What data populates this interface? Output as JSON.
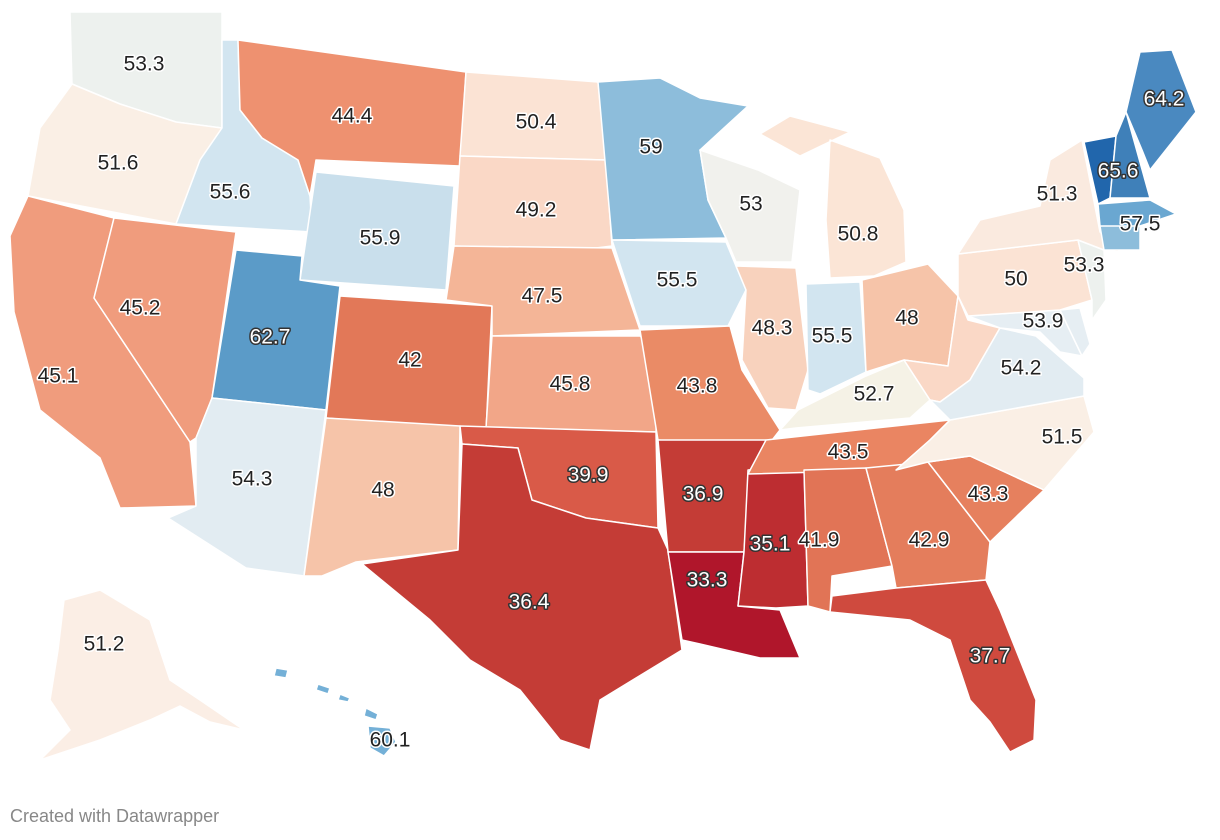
{
  "map": {
    "type": "choropleth",
    "region": "United States",
    "color_scale": {
      "low": "#b2182b",
      "mid": "#f7f7f7",
      "high": "#2166ac"
    },
    "states": [
      {
        "code": "WA",
        "value": "53.3",
        "color": "#edf1ee"
      },
      {
        "code": "OR",
        "value": "51.6",
        "color": "#faefe5"
      },
      {
        "code": "CA",
        "value": "45.1",
        "color": "#f09c7d"
      },
      {
        "code": "ID",
        "value": "55.6",
        "color": "#d2e5f0"
      },
      {
        "code": "NV",
        "value": "45.2",
        "color": "#f09c7d"
      },
      {
        "code": "MT",
        "value": "44.4",
        "color": "#ee9170"
      },
      {
        "code": "WY",
        "value": "55.9",
        "color": "#c9dfec"
      },
      {
        "code": "UT",
        "value": "62.7",
        "color": "#5b9bc8"
      },
      {
        "code": "AZ",
        "value": "54.3",
        "color": "#e2ecf2"
      },
      {
        "code": "CO",
        "value": "42",
        "color": "#e27858"
      },
      {
        "code": "NM",
        "value": "48",
        "color": "#f6c4a9"
      },
      {
        "code": "ND",
        "value": "50.4",
        "color": "#fbe3d4"
      },
      {
        "code": "SD",
        "value": "49.2",
        "color": "#fad8c6"
      },
      {
        "code": "NE",
        "value": "47.5",
        "color": "#f4b597"
      },
      {
        "code": "KS",
        "value": "45.8",
        "color": "#f2a688"
      },
      {
        "code": "OK",
        "value": "39.9",
        "color": "#d95a48"
      },
      {
        "code": "TX",
        "value": "36.4",
        "color": "#c43c36"
      },
      {
        "code": "MN",
        "value": "59",
        "color": "#8dbddb"
      },
      {
        "code": "IA",
        "value": "55.5",
        "color": "#d2e5f0"
      },
      {
        "code": "MO",
        "value": "43.8",
        "color": "#ea8b66"
      },
      {
        "code": "AR",
        "value": "36.9",
        "color": "#c43c36"
      },
      {
        "code": "LA",
        "value": "33.3",
        "color": "#b0162b"
      },
      {
        "code": "WI",
        "value": "53",
        "color": "#f1f1ed"
      },
      {
        "code": "IL",
        "value": "48.3",
        "color": "#f8d2bd"
      },
      {
        "code": "MS",
        "value": "35.1",
        "color": "#bd2d31"
      },
      {
        "code": "MI",
        "value": "50.8",
        "color": "#fbe5d6"
      },
      {
        "code": "IN",
        "value": "55.5",
        "color": "#d2e5f0"
      },
      {
        "code": "KY",
        "value": "52.7",
        "color": "#f5f2e6"
      },
      {
        "code": "TN",
        "value": "43.5",
        "color": "#ea8562"
      },
      {
        "code": "AL",
        "value": "41.9",
        "color": "#e17456"
      },
      {
        "code": "OH",
        "value": "48",
        "color": "#f6c4a9"
      },
      {
        "code": "WV",
        "value": "",
        "color": "#fad8c6"
      },
      {
        "code": "GA",
        "value": "42.9",
        "color": "#e47d5c"
      },
      {
        "code": "FL",
        "value": "37.7",
        "color": "#cf4a3e"
      },
      {
        "code": "SC",
        "value": "43.3",
        "color": "#e6805e"
      },
      {
        "code": "NC",
        "value": "51.5",
        "color": "#faefe5"
      },
      {
        "code": "VA",
        "value": "54.2",
        "color": "#e2ecf2"
      },
      {
        "code": "MD",
        "value": "53.9",
        "color": "#e6eef3"
      },
      {
        "code": "DE",
        "value": "",
        "color": "#e6eef3"
      },
      {
        "code": "PA",
        "value": "50",
        "color": "#fbe3d4"
      },
      {
        "code": "NJ",
        "value": "53.3",
        "color": "#edf1ee"
      },
      {
        "code": "NY",
        "value": "51.3",
        "color": "#faeadf"
      },
      {
        "code": "CT",
        "value": "",
        "color": "#8dbddb"
      },
      {
        "code": "MA",
        "value": "57.5",
        "color": "#6aa7d1"
      },
      {
        "code": "VT",
        "value": "65.6",
        "color": "#2166ac"
      },
      {
        "code": "NH",
        "value": "",
        "color": "#3f80b9"
      },
      {
        "code": "ME",
        "value": "64.2",
        "color": "#4a89c0"
      },
      {
        "code": "AK",
        "value": "51.2",
        "color": "#fbeee5"
      },
      {
        "code": "HI",
        "value": "60.1",
        "color": "#74b0d7"
      }
    ]
  },
  "footer": {
    "credit": "Created with Datawrapper"
  }
}
